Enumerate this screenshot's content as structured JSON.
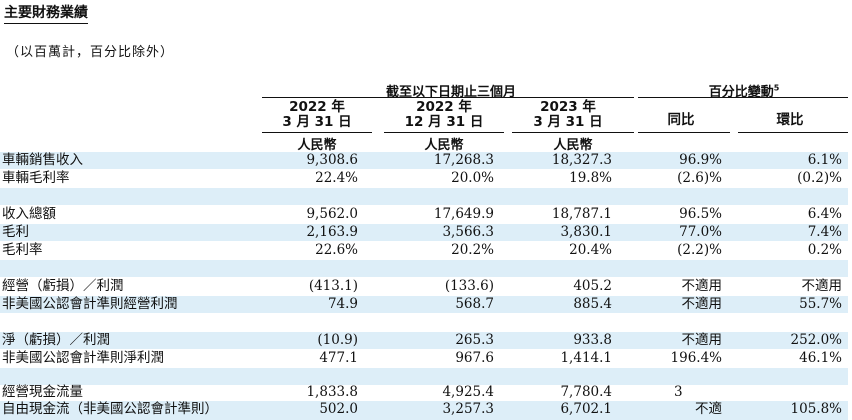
{
  "title": "主要財務業績",
  "unit_note": "（以百萬計，百分比除外）",
  "header": {
    "period_group": "截至以下日期止三個月",
    "change_group": "百分比變動",
    "change_footnote": "5",
    "columns": [
      {
        "year": "2022 年",
        "date": "3 月 31 日",
        "currency": "人民幣"
      },
      {
        "year": "2022 年",
        "date": "12 月 31 日",
        "currency": "人民幣"
      },
      {
        "year": "2023 年",
        "date": "3 月 31 日",
        "currency": "人民幣"
      }
    ],
    "yoy": "同比",
    "qoq": "環比"
  },
  "rows": [
    {
      "label": "車輛銷售收入",
      "c1": "9,308.6",
      "c2": "17,268.3",
      "c3": "18,327.3",
      "yoy": "96.9%",
      "qoq": "6.1%"
    },
    {
      "label": "車輛毛利率",
      "c1": "22.4%",
      "c2": "20.0%",
      "c3": "19.8%",
      "yoy": "(2.6)%",
      "qoq": "(0.2)%"
    },
    {
      "label": "收入總額",
      "c1": "9,562.0",
      "c2": "17,649.9",
      "c3": "18,787.1",
      "yoy": "96.5%",
      "qoq": "6.4%"
    },
    {
      "label": "毛利",
      "c1": "2,163.9",
      "c2": "3,566.3",
      "c3": "3,830.1",
      "yoy": "77.0%",
      "qoq": "7.4%"
    },
    {
      "label": "毛利率",
      "c1": "22.6%",
      "c2": "20.2%",
      "c3": "20.4%",
      "yoy": "(2.2)%",
      "qoq": "0.2%"
    },
    {
      "label": "經營（虧損）／利潤",
      "c1": "(413.1)",
      "c2": "(133.6)",
      "c3": "405.2",
      "yoy": "不適用",
      "qoq": "不適用"
    },
    {
      "label": "非美國公認會計準則經營利潤",
      "c1": "74.9",
      "c2": "568.7",
      "c3": "885.4",
      "yoy": "不適用",
      "qoq": "55.7%"
    },
    {
      "label": "淨（虧損）／利潤",
      "c1": "(10.9)",
      "c2": "265.3",
      "c3": "933.8",
      "yoy": "不適用",
      "qoq": "252.0%"
    },
    {
      "label": "非美國公認會計準則淨利潤",
      "c1": "477.1",
      "c2": "967.6",
      "c3": "1,414.1",
      "yoy": "196.4%",
      "qoq": "46.1%"
    },
    {
      "label": "經營現金流量",
      "c1": "1,833.8",
      "c2": "4,925.4",
      "c3": "7,780.4",
      "yoy": "3",
      "qoq": ""
    },
    {
      "label": "自由現金流（非美國公認會計準則）",
      "c1": "502.0",
      "c2": "3,257.3",
      "c3": "6,702.1",
      "yoy": "不適",
      "qoq": "105.8%"
    }
  ]
}
